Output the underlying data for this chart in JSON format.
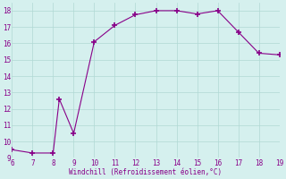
{
  "x": [
    6,
    7,
    8,
    8.3,
    9,
    10,
    11,
    12,
    13,
    14,
    15,
    16,
    17,
    18,
    19
  ],
  "y": [
    9.5,
    9.3,
    9.3,
    12.6,
    10.5,
    16.1,
    17.1,
    17.75,
    18.0,
    18.0,
    17.8,
    18.0,
    16.7,
    15.4,
    15.3
  ],
  "line_color": "#880088",
  "marker_color": "#880088",
  "bg_color": "#d5f0ee",
  "grid_color": "#b0d8d4",
  "text_color": "#880088",
  "xlabel": "Windchill (Refroidissement éolien,°C)",
  "xlim": [
    6,
    19
  ],
  "ylim": [
    9,
    18.5
  ],
  "xticks": [
    6,
    7,
    8,
    9,
    10,
    11,
    12,
    13,
    14,
    15,
    16,
    17,
    18,
    19
  ],
  "yticks": [
    9,
    10,
    11,
    12,
    13,
    14,
    15,
    16,
    17,
    18
  ],
  "figsize": [
    3.2,
    2.0
  ],
  "dpi": 100
}
